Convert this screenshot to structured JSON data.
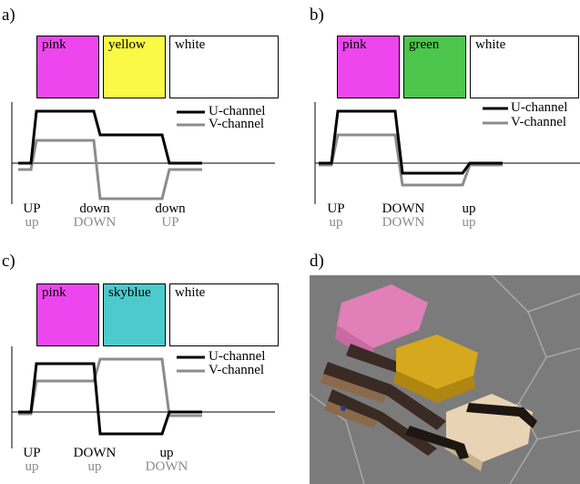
{
  "colors": {
    "u_channel": "#000000",
    "v_channel": "#8c8c8c",
    "pink": "#ee46ee",
    "yellow": "#fafa46",
    "green": "#4cc64c",
    "skyblue": "#4ccacc",
    "white": "#ffffff",
    "photo_bg": "#7a7a7a"
  },
  "legend": {
    "u": "U-channel",
    "v": "V-channel"
  },
  "panels": {
    "a": {
      "label": "a)",
      "swatches": [
        "pink",
        "yellow",
        "white"
      ],
      "levels": [
        {
          "u": "UP",
          "v": "up"
        },
        {
          "u": "down",
          "v": "DOWN"
        },
        {
          "u": "down",
          "v": "UP"
        }
      ]
    },
    "b": {
      "label": "b)",
      "swatches": [
        "pink",
        "green",
        "white"
      ],
      "levels": [
        {
          "u": "UP",
          "v": "up"
        },
        {
          "u": "DOWN",
          "v": "DOWN"
        },
        {
          "u": "up",
          "v": "up"
        }
      ]
    },
    "c": {
      "label": "c)",
      "swatches": [
        "pink",
        "skyblue",
        "white"
      ],
      "levels": [
        {
          "u": "UP",
          "v": "up"
        },
        {
          "u": "DOWN",
          "v": "up"
        },
        {
          "u": "up",
          "v": "DOWN"
        }
      ]
    },
    "d": {
      "label": "d)"
    }
  }
}
